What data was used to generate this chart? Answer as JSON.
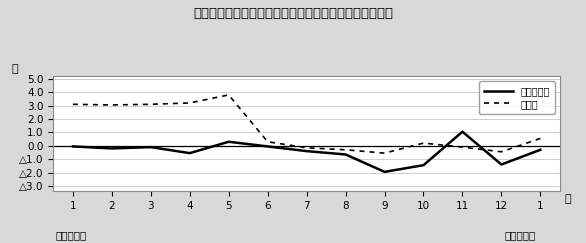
{
  "title": "第３図　常用雇用指数対前年比の推移（規模５人以上）",
  "ylabel": "％",
  "xlabel_right": "月",
  "bottom_left": "平成１９年",
  "bottom_right": "平成２０年",
  "x_labels": [
    "1",
    "2",
    "3",
    "4",
    "5",
    "6",
    "7",
    "8",
    "9",
    "10",
    "11",
    "12",
    "1"
  ],
  "x_values": [
    1,
    2,
    3,
    4,
    5,
    6,
    7,
    8,
    9,
    10,
    11,
    12,
    13
  ],
  "ylim": [
    -3.4,
    5.2
  ],
  "ytick_vals": [
    5.0,
    4.0,
    3.0,
    2.0,
    1.0,
    0.0,
    -1.0,
    -2.0,
    -3.0
  ],
  "ytick_labels": [
    "5.0",
    "4.0",
    "3.0",
    "2.0",
    "1.0",
    "0.0",
    "△1.0",
    "△2.0",
    "△3.0"
  ],
  "series_solid_name": "調査産業計",
  "series_solid_values": [
    -0.05,
    -0.2,
    -0.1,
    -0.55,
    0.3,
    -0.05,
    -0.4,
    -0.65,
    -1.95,
    -1.45,
    1.05,
    -1.4,
    -0.3
  ],
  "series_dotted_name": "製造業",
  "series_dotted_values": [
    3.1,
    3.05,
    3.1,
    3.2,
    3.8,
    0.3,
    -0.15,
    -0.3,
    -0.55,
    0.2,
    -0.1,
    -0.45,
    0.55
  ],
  "background_color": "#d8d8d8",
  "plot_bg_color": "#ffffff",
  "line_color": "#000000",
  "border_color": "#888888"
}
